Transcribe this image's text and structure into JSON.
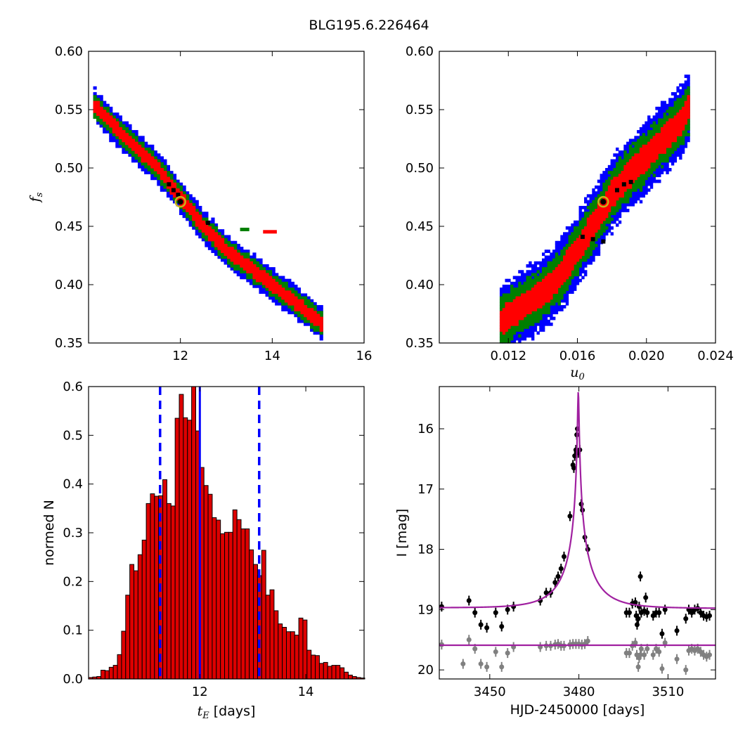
{
  "figure": {
    "title": "BLG195.6.226464"
  },
  "colors": {
    "blue": "#0000ff",
    "green": "#007f00",
    "red": "#ff0000",
    "black": "#000000",
    "marker": "#c8b418",
    "fit": "#a020a0",
    "gray": "#808080",
    "bar": "#dd0000"
  },
  "chart_data": [
    {
      "id": "top-left",
      "type": "heatmap",
      "xlabel": "",
      "ylabel": "f",
      "ylabel_sub": "s",
      "xlim": [
        10,
        16
      ],
      "ylim": [
        0.35,
        0.6
      ],
      "xticks": [
        "12",
        "14",
        "16"
      ],
      "yticks": [
        "0.35",
        "0.40",
        "0.45",
        "0.50",
        "0.55",
        "0.60"
      ],
      "ridge": [
        [
          10.1,
          0.555
        ],
        [
          10.7,
          0.53
        ],
        [
          11.5,
          0.5
        ],
        [
          12.0,
          0.475
        ],
        [
          12.5,
          0.45
        ],
        [
          13.0,
          0.43
        ],
        [
          13.5,
          0.415
        ],
        [
          14.0,
          0.4
        ],
        [
          14.5,
          0.385
        ],
        [
          15.1,
          0.366
        ]
      ],
      "halfwidth": {
        "blue": 0.0135,
        "green": 0.0095,
        "red": 0.0055
      },
      "extra_red": [
        [
          13.8,
          0.445
        ],
        [
          14.1,
          0.445
        ]
      ],
      "extra_green": [
        [
          13.3,
          0.447
        ],
        [
          13.5,
          0.447
        ]
      ],
      "best_fit": [
        12.0,
        0.471
      ]
    },
    {
      "id": "top-right",
      "type": "heatmap",
      "xlabel": "u",
      "xlabel_sub": "0",
      "ylabel": "",
      "xlim": [
        0.008,
        0.024
      ],
      "ylim": [
        0.35,
        0.6
      ],
      "xticks": [
        "0.012",
        "0.016",
        "0.020",
        "0.024"
      ],
      "yticks": [
        "0.35",
        "0.40",
        "0.45",
        "0.50",
        "0.55",
        "0.60"
      ],
      "ridge": [
        [
          0.0115,
          0.368
        ],
        [
          0.0125,
          0.378
        ],
        [
          0.014,
          0.393
        ],
        [
          0.015,
          0.408
        ],
        [
          0.016,
          0.43
        ],
        [
          0.017,
          0.453
        ],
        [
          0.018,
          0.478
        ],
        [
          0.019,
          0.495
        ],
        [
          0.02,
          0.51
        ],
        [
          0.021,
          0.525
        ],
        [
          0.022,
          0.54
        ],
        [
          0.0225,
          0.553
        ]
      ],
      "halfwidth": {
        "blue": 0.03,
        "green": 0.021,
        "red": 0.011
      },
      "best_fit": [
        0.0175,
        0.471
      ]
    },
    {
      "id": "bottom-left",
      "type": "bar",
      "xlabel": "t",
      "xlabel_sub": "E",
      "xlabel_unit": "[days]",
      "ylabel": "normed N",
      "xlim": [
        9.9,
        15.1
      ],
      "ylim": [
        0,
        0.6
      ],
      "xticks": [
        "12",
        "14"
      ],
      "yticks": [
        "0.0",
        "0.1",
        "0.2",
        "0.3",
        "0.4",
        "0.5",
        "0.6"
      ],
      "bin_start": 9.9,
      "bin_width": 0.0778,
      "values": [
        0.003,
        0.004,
        0.005,
        0.018,
        0.017,
        0.024,
        0.028,
        0.05,
        0.098,
        0.172,
        0.235,
        0.222,
        0.255,
        0.285,
        0.36,
        0.38,
        0.375,
        0.376,
        0.409,
        0.36,
        0.355,
        0.535,
        0.584,
        0.536,
        0.531,
        0.6,
        0.509,
        0.434,
        0.397,
        0.379,
        0.331,
        0.326,
        0.298,
        0.301,
        0.301,
        0.347,
        0.327,
        0.308,
        0.308,
        0.265,
        0.235,
        0.212,
        0.264,
        0.172,
        0.183,
        0.14,
        0.113,
        0.106,
        0.097,
        0.097,
        0.09,
        0.125,
        0.121,
        0.059,
        0.049,
        0.048,
        0.032,
        0.034,
        0.026,
        0.028,
        0.028,
        0.023,
        0.014,
        0.008,
        0.005,
        0.003,
        0.002
      ],
      "median": 12.0,
      "lower": 11.25,
      "upper": 13.12
    },
    {
      "id": "bottom-right",
      "type": "scatter",
      "xlabel": "HJD-2450000 [days]",
      "ylabel": "I [mag]",
      "xlim": [
        3433,
        3526
      ],
      "ylim": [
        20.15,
        15.3
      ],
      "xticks": [
        "3450",
        "3480",
        "3510"
      ],
      "yticks": [
        "16",
        "17",
        "18",
        "19",
        "20"
      ],
      "model": {
        "t0": 3479.8,
        "tE": 12.0,
        "u0": 0.0175,
        "fs": 0.471,
        "base": 18.97,
        "slope": 0.0001
      },
      "black_points": [
        [
          3433.8,
          18.95
        ],
        [
          3443,
          18.85
        ],
        [
          3445,
          19.05
        ],
        [
          3447,
          19.25
        ],
        [
          3449,
          19.3
        ],
        [
          3452,
          19.05
        ],
        [
          3454,
          19.28
        ],
        [
          3456,
          19.0
        ],
        [
          3458,
          18.95
        ],
        [
          3467,
          18.85
        ],
        [
          3469,
          18.72
        ],
        [
          3470.5,
          18.72
        ],
        [
          3472,
          18.55
        ],
        [
          3473,
          18.45
        ],
        [
          3474,
          18.32
        ],
        [
          3475,
          18.12
        ],
        [
          3477,
          17.45
        ],
        [
          3478,
          16.6
        ],
        [
          3478.3,
          16.65
        ],
        [
          3478.6,
          16.45
        ],
        [
          3479,
          16.35
        ],
        [
          3479.3,
          16.1
        ],
        [
          3479.5,
          16.0
        ],
        [
          3479.8,
          16.4
        ],
        [
          3480.3,
          16.35
        ],
        [
          3480.8,
          17.25
        ],
        [
          3481.2,
          17.35
        ],
        [
          3482,
          17.8
        ],
        [
          3483,
          18.0
        ],
        [
          3496,
          19.05
        ],
        [
          3497,
          19.05
        ],
        [
          3498,
          18.9
        ],
        [
          3499,
          18.88
        ],
        [
          3499.3,
          19.1
        ],
        [
          3499.6,
          19.25
        ],
        [
          3500,
          19.15
        ],
        [
          3500.3,
          18.95
        ],
        [
          3500.7,
          18.45
        ],
        [
          3501,
          19.05
        ],
        [
          3502,
          19.02
        ],
        [
          3502.5,
          18.8
        ],
        [
          3503,
          19.05
        ],
        [
          3505,
          19.1
        ],
        [
          3506,
          19.05
        ],
        [
          3507,
          19.05
        ],
        [
          3508,
          19.4
        ],
        [
          3509,
          19.0
        ],
        [
          3513,
          19.35
        ],
        [
          3516,
          19.15
        ],
        [
          3517,
          19.0
        ],
        [
          3518,
          19.05
        ],
        [
          3519,
          19.0
        ],
        [
          3520,
          18.98
        ],
        [
          3521,
          19.05
        ],
        [
          3522,
          19.1
        ],
        [
          3523,
          19.12
        ],
        [
          3524,
          19.1
        ]
      ],
      "gray_points": [
        [
          3433.8,
          19.58
        ],
        [
          3441,
          19.9
        ],
        [
          3443,
          19.5
        ],
        [
          3445,
          19.65
        ],
        [
          3447,
          19.9
        ],
        [
          3449,
          19.95
        ],
        [
          3452,
          19.7
        ],
        [
          3454,
          19.95
        ],
        [
          3456,
          19.72
        ],
        [
          3458,
          19.62
        ],
        [
          3467,
          19.62
        ],
        [
          3469,
          19.6
        ],
        [
          3470.5,
          19.6
        ],
        [
          3472,
          19.58
        ],
        [
          3473,
          19.57
        ],
        [
          3474,
          19.6
        ],
        [
          3475,
          19.6
        ],
        [
          3477,
          19.58
        ],
        [
          3478,
          19.57
        ],
        [
          3479,
          19.57
        ],
        [
          3480,
          19.57
        ],
        [
          3481,
          19.58
        ],
        [
          3482,
          19.57
        ],
        [
          3483,
          19.52
        ],
        [
          3496,
          19.72
        ],
        [
          3497,
          19.72
        ],
        [
          3498,
          19.6
        ],
        [
          3499,
          19.55
        ],
        [
          3499.5,
          19.75
        ],
        [
          3500,
          19.95
        ],
        [
          3500.3,
          19.8
        ],
        [
          3500.7,
          19.75
        ],
        [
          3501,
          19.65
        ],
        [
          3502,
          19.75
        ],
        [
          3503,
          19.65
        ],
        [
          3505,
          19.75
        ],
        [
          3506,
          19.65
        ],
        [
          3507,
          19.7
        ],
        [
          3508,
          19.98
        ],
        [
          3509,
          19.55
        ],
        [
          3513,
          19.82
        ],
        [
          3516,
          20.0
        ],
        [
          3517,
          19.68
        ],
        [
          3518,
          19.65
        ],
        [
          3519,
          19.68
        ],
        [
          3520,
          19.65
        ],
        [
          3521,
          19.7
        ],
        [
          3522,
          19.75
        ],
        [
          3523,
          19.78
        ],
        [
          3524,
          19.75
        ]
      ],
      "gray_model_level": 19.59
    }
  ]
}
